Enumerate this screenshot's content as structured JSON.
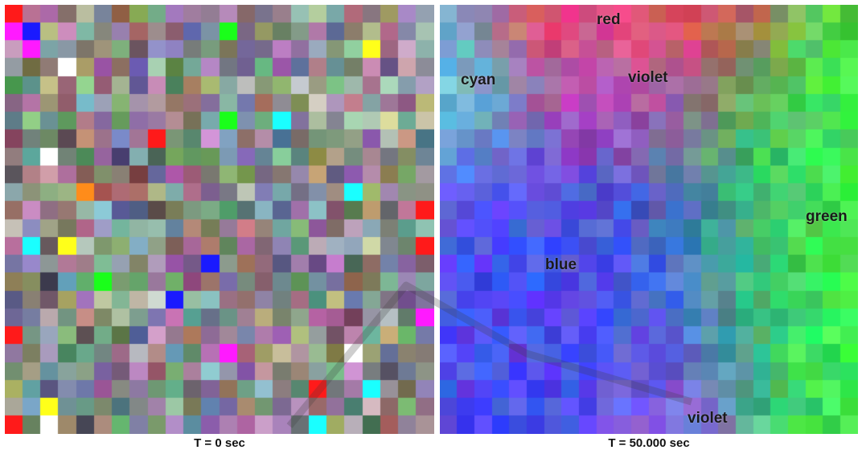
{
  "panels": [
    {
      "caption": "T = 0 sec"
    },
    {
      "caption": "T = 50.000 sec"
    }
  ],
  "labels": {
    "red": "red",
    "cyan": "cyan",
    "violet_top": "violet",
    "green": "green",
    "blue": "blue",
    "violet_bottom": "violet"
  },
  "colors": {
    "red": "#ff3c3c",
    "cyan": "#5fe6e6",
    "violet": "#c864f0",
    "blue": "#4a4ef0",
    "green": "#3cf046"
  }
}
